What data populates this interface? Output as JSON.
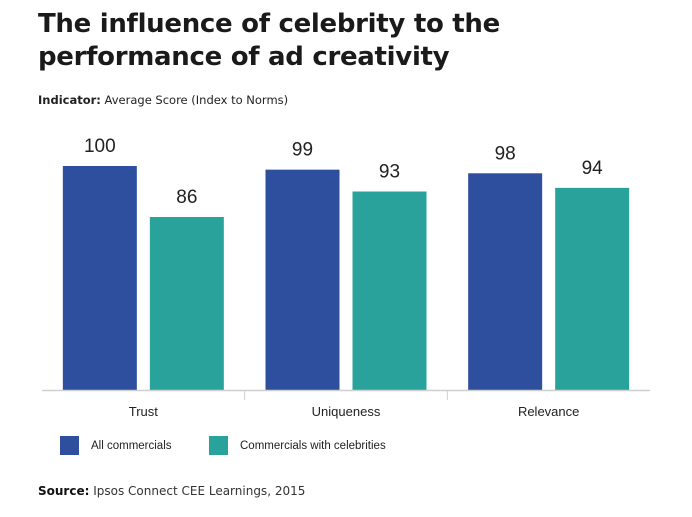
{
  "chart_data": {
    "type": "bar",
    "title": "The influence of celebrity to the performance of ad creativity",
    "subtitle_label": "Indicator:",
    "subtitle_text": "Average Score (Index to Norms)",
    "categories": [
      "Trust",
      "Uniqueness",
      "Relevance"
    ],
    "series": [
      {
        "name": "All commercials",
        "color": "#2e4f9e",
        "values": [
          100,
          99,
          98
        ]
      },
      {
        "name": "Commercials with celebrities",
        "color": "#2aa29c",
        "values": [
          86,
          93,
          94
        ]
      }
    ],
    "xlabel": "",
    "ylabel": "",
    "ylim": [
      38.5,
      100
    ],
    "grid": false,
    "legend_position": "bottom-left",
    "source_label": "Source:",
    "source_text": "Ipsos Connect CEE Learnings, 2015"
  }
}
